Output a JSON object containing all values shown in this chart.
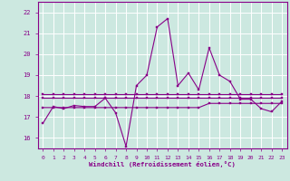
{
  "xlabel": "Windchill (Refroidissement éolien,°C)",
  "bg_color": "#cce8e0",
  "grid_color": "#ffffff",
  "line_color": "#880088",
  "xlim": [
    -0.5,
    23.5
  ],
  "ylim": [
    15.5,
    22.5
  ],
  "yticks": [
    16,
    17,
    18,
    19,
    20,
    21,
    22
  ],
  "xticks": [
    0,
    1,
    2,
    3,
    4,
    5,
    6,
    7,
    8,
    9,
    10,
    11,
    12,
    13,
    14,
    15,
    16,
    17,
    18,
    19,
    20,
    21,
    22,
    23
  ],
  "line_main": [
    16.7,
    17.5,
    17.4,
    17.55,
    17.5,
    17.5,
    17.9,
    17.2,
    15.6,
    18.5,
    19.0,
    21.3,
    21.7,
    18.5,
    19.1,
    18.3,
    20.3,
    19.0,
    18.7,
    17.85,
    17.85,
    17.4,
    17.25,
    17.75
  ],
  "line_avg1": [
    17.45,
    17.45,
    17.45,
    17.45,
    17.45,
    17.45,
    17.45,
    17.45,
    17.45,
    17.45,
    17.45,
    17.45,
    17.45,
    17.45,
    17.45,
    17.45,
    17.65,
    17.65,
    17.65,
    17.65,
    17.65,
    17.65,
    17.65,
    17.65
  ],
  "line_avg2": [
    17.9,
    17.9,
    17.9,
    17.9,
    17.9,
    17.9,
    17.9,
    17.9,
    17.9,
    17.9,
    17.9,
    17.9,
    17.9,
    17.9,
    17.9,
    17.9,
    17.9,
    17.9,
    17.9,
    17.9,
    17.9,
    17.9,
    17.9,
    17.9
  ],
  "line_avg3": [
    18.1,
    18.1,
    18.1,
    18.1,
    18.1,
    18.1,
    18.1,
    18.1,
    18.1,
    18.1,
    18.1,
    18.1,
    18.1,
    18.1,
    18.1,
    18.1,
    18.1,
    18.1,
    18.1,
    18.1,
    18.1,
    18.1,
    18.1,
    18.1
  ]
}
